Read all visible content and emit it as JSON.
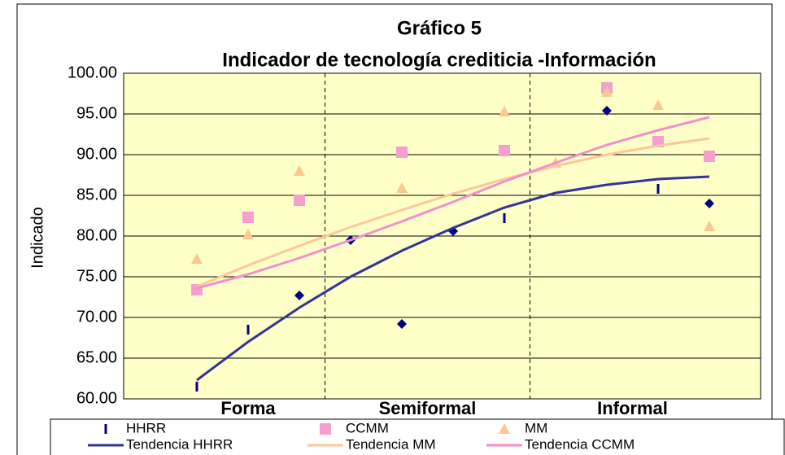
{
  "chart_data": {
    "type": "scatter",
    "title": "Gráfico 5",
    "subtitle": "Indicador de tecnología crediticia -Información",
    "y_label": "Indicado",
    "categories": [
      null,
      null,
      null,
      null,
      null,
      null,
      null,
      null,
      null,
      null,
      null
    ],
    "groups": [
      {
        "label": "Forma",
        "count": 3
      },
      {
        "label": "Semiformal",
        "count": 4
      },
      {
        "label": "Informal",
        "count": 4
      }
    ],
    "ylim": [
      60,
      100
    ],
    "yticks": [
      {
        "value": 60,
        "label": "60.00"
      },
      {
        "value": 65,
        "label": "65.00"
      },
      {
        "value": 70,
        "label": "70.00"
      },
      {
        "value": 75,
        "label": "75.00"
      },
      {
        "value": 80,
        "label": "80.00"
      },
      {
        "value": 85,
        "label": "85.00"
      },
      {
        "value": 90,
        "label": "90.00"
      },
      {
        "value": 95,
        "label": "95.00"
      },
      {
        "value": 100,
        "label": "100.00"
      }
    ],
    "grid": true,
    "background": "#ffffc8",
    "series": [
      {
        "name": "HHRR",
        "color": "#000080",
        "marker": "dash",
        "markers": [
          "dash",
          "dash",
          "diamond",
          "diamond",
          "diamond",
          "diamond",
          "dash",
          "dash",
          "diamond",
          "dash",
          "diamond"
        ],
        "values": [
          61.5,
          68.5,
          72.7,
          79.5,
          69.2,
          80.6,
          82.2,
          null,
          95.4,
          85.8,
          84.0
        ]
      },
      {
        "name": "CCMM",
        "color": "#f59fd0",
        "marker": "square",
        "values": [
          73.4,
          82.3,
          84.4,
          null,
          90.3,
          null,
          90.5,
          null,
          98.2,
          91.6,
          89.8
        ]
      },
      {
        "name": "MM",
        "color": "#fbc792",
        "marker": "triangle",
        "values": [
          77.2,
          80.2,
          88.0,
          null,
          85.9,
          null,
          95.3,
          89.0,
          97.7,
          96.1,
          81.2
        ]
      },
      {
        "name": "Tendencia HHRR",
        "color": "#333399",
        "marker": "line",
        "values": [
          62.3,
          67.0,
          71.2,
          75.0,
          78.2,
          81.0,
          83.5,
          85.3,
          86.3,
          87.0,
          87.3
        ]
      },
      {
        "name": "Tendencia MM",
        "color": "#fcc89a",
        "marker": "line",
        "values": [
          73.8,
          76.4,
          78.8,
          81.1,
          83.2,
          85.2,
          87.0,
          88.6,
          90.0,
          91.1,
          92.0
        ]
      },
      {
        "name": "Tendencia CCMM",
        "color": "#f48fcc",
        "marker": "line",
        "values": [
          73.6,
          75.3,
          77.3,
          79.5,
          81.8,
          84.2,
          86.7,
          89.0,
          91.2,
          93.0,
          94.6
        ]
      }
    ]
  }
}
